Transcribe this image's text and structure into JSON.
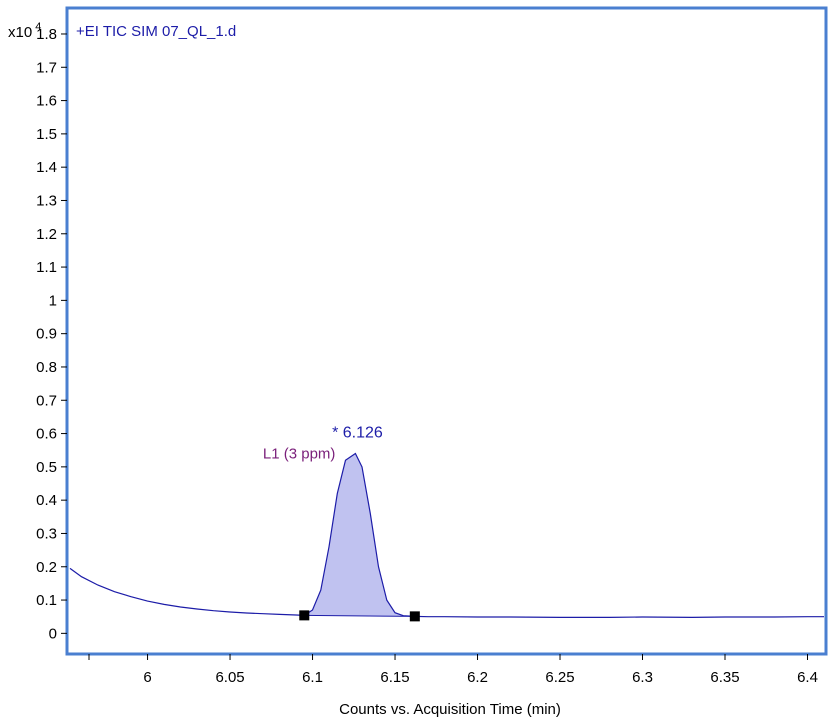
{
  "chart_data": {
    "type": "line",
    "title": "+EI TIC SIM 07_QL_1.d",
    "xlabel": "Counts vs. Acquisition Time (min)",
    "ylabel": "",
    "y_multiplier": "x10",
    "y_multiplier_exponent": "4",
    "xlim": [
      5.953,
      6.41
    ],
    "ylim": [
      -0.05,
      1.86
    ],
    "x_ticks": [
      "6",
      "6.05",
      "6.1",
      "6.15",
      "6.2",
      "6.25",
      "6.3",
      "6.35",
      "6.4"
    ],
    "x_tick_values": [
      6.0,
      6.05,
      6.1,
      6.15,
      6.2,
      6.25,
      6.3,
      6.35,
      6.4
    ],
    "y_ticks": [
      "0",
      "0.1",
      "0.2",
      "0.3",
      "0.4",
      "0.5",
      "0.6",
      "0.7",
      "0.8",
      "0.9",
      "1",
      "1.1",
      "1.2",
      "1.3",
      "1.4",
      "1.5",
      "1.6",
      "1.7",
      "1.8"
    ],
    "y_tick_values": [
      0,
      0.1,
      0.2,
      0.3,
      0.4,
      0.5,
      0.6,
      0.7,
      0.8,
      0.9,
      1.0,
      1.1,
      1.2,
      1.3,
      1.4,
      1.5,
      1.6,
      1.7,
      1.8
    ],
    "grid": false,
    "series": [
      {
        "color": "#1c1ca8",
        "x": [
          5.953,
          5.96,
          5.97,
          5.98,
          5.99,
          6.0,
          6.01,
          6.02,
          6.03,
          6.04,
          6.05,
          6.06,
          6.07,
          6.08,
          6.09,
          6.095,
          6.1,
          6.105,
          6.11,
          6.115,
          6.12,
          6.126,
          6.13,
          6.135,
          6.14,
          6.145,
          6.15,
          6.155,
          6.162,
          6.17,
          6.18,
          6.2,
          6.22,
          6.25,
          6.28,
          6.3,
          6.33,
          6.35,
          6.38,
          6.4,
          6.41
        ],
        "y": [
          0.195,
          0.17,
          0.145,
          0.125,
          0.11,
          0.097,
          0.087,
          0.079,
          0.073,
          0.068,
          0.064,
          0.061,
          0.059,
          0.057,
          0.055,
          0.054,
          0.07,
          0.13,
          0.26,
          0.42,
          0.52,
          0.54,
          0.5,
          0.36,
          0.2,
          0.1,
          0.062,
          0.053,
          0.051,
          0.05,
          0.05,
          0.049,
          0.049,
          0.048,
          0.048,
          0.049,
          0.048,
          0.049,
          0.049,
          0.05,
          0.05
        ]
      }
    ],
    "integrated_peak": {
      "fill_color": "#c0c2f0",
      "x_start": 6.095,
      "x_end": 6.162,
      "baseline_y_start": 0.054,
      "baseline_y_end": 0.051
    },
    "annotations": [
      {
        "text": "* 6.126",
        "x": 6.126,
        "y": 0.54,
        "color": "#1c1ca8"
      },
      {
        "text": "L1 (3 ppm)",
        "x": 6.126,
        "y": 0.54,
        "color": "#7a1f7a"
      }
    ],
    "frame_color": "#4a7fd0"
  }
}
